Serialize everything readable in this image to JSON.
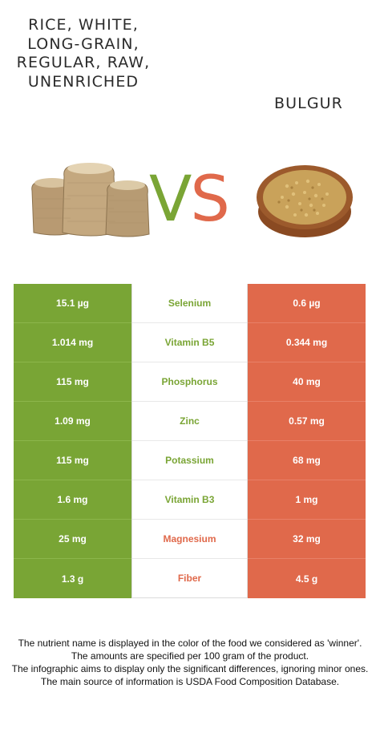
{
  "left_food": {
    "title": "RICE, WHITE, LONG-GRAIN, REGULAR, RAW, UNENRICHED"
  },
  "right_food": {
    "title": "BULGUR"
  },
  "vs": {
    "v": "V",
    "s": "S"
  },
  "colors": {
    "winner_left": "#79a535",
    "winner_right": "#e0694b"
  },
  "rows": [
    {
      "left": "15.1 µg",
      "nutrient": "Selenium",
      "right": "0.6 µg",
      "winner": "left"
    },
    {
      "left": "1.014 mg",
      "nutrient": "Vitamin B5",
      "right": "0.344 mg",
      "winner": "left"
    },
    {
      "left": "115 mg",
      "nutrient": "Phosphorus",
      "right": "40 mg",
      "winner": "left"
    },
    {
      "left": "1.09 mg",
      "nutrient": "Zinc",
      "right": "0.57 mg",
      "winner": "left"
    },
    {
      "left": "115 mg",
      "nutrient": "Potassium",
      "right": "68 mg",
      "winner": "left"
    },
    {
      "left": "1.6 mg",
      "nutrient": "Vitamin B3",
      "right": "1 mg",
      "winner": "left"
    },
    {
      "left": "25 mg",
      "nutrient": "Magnesium",
      "right": "32 mg",
      "winner": "right"
    },
    {
      "left": "1.3 g",
      "nutrient": "Fiber",
      "right": "4.5 g",
      "winner": "right"
    }
  ],
  "footer": {
    "line1": "The nutrient name is displayed in the color of the food we considered as 'winner'.",
    "line2": "The amounts are specified per 100 gram of the product.",
    "line3": "The infographic aims to display only the significant differences, ignoring minor ones.",
    "line4": "The main source of information is USDA Food Composition Database."
  }
}
